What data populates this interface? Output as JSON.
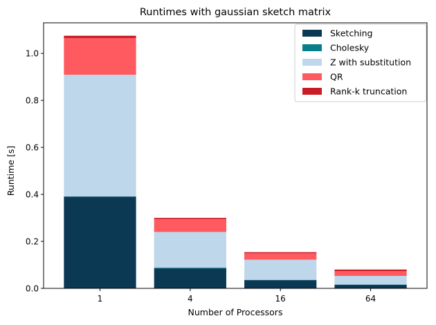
{
  "chart_data": {
    "type": "bar",
    "stacked": true,
    "title": "Runtimes with gaussian sketch matrix",
    "xlabel": "Number of Processors",
    "ylabel": "Runtime [s]",
    "categories": [
      "1",
      "4",
      "16",
      "64"
    ],
    "ylim": [
      0,
      1.13
    ],
    "yticks": [
      0.0,
      0.2,
      0.4,
      0.6,
      0.8,
      1.0
    ],
    "ytick_labels": [
      "0.0",
      "0.2",
      "0.4",
      "0.6",
      "0.8",
      "1.0"
    ],
    "grid": false,
    "legend_position": "top-right",
    "series": [
      {
        "name": "Sketching",
        "color": "#0b3954",
        "values": [
          0.39,
          0.085,
          0.035,
          0.015
        ]
      },
      {
        "name": "Cholesky",
        "color": "#087e8b",
        "values": [
          0.001,
          0.003,
          0.001,
          0.001
        ]
      },
      {
        "name": "Z with substitution",
        "color": "#bfd7ea",
        "values": [
          0.518,
          0.152,
          0.086,
          0.037
        ]
      },
      {
        "name": "QR",
        "color": "#ff5a5f",
        "values": [
          0.156,
          0.055,
          0.027,
          0.02
        ]
      },
      {
        "name": "Rank-k truncation",
        "color": "#c81d25",
        "values": [
          0.01,
          0.005,
          0.005,
          0.007
        ]
      }
    ]
  }
}
